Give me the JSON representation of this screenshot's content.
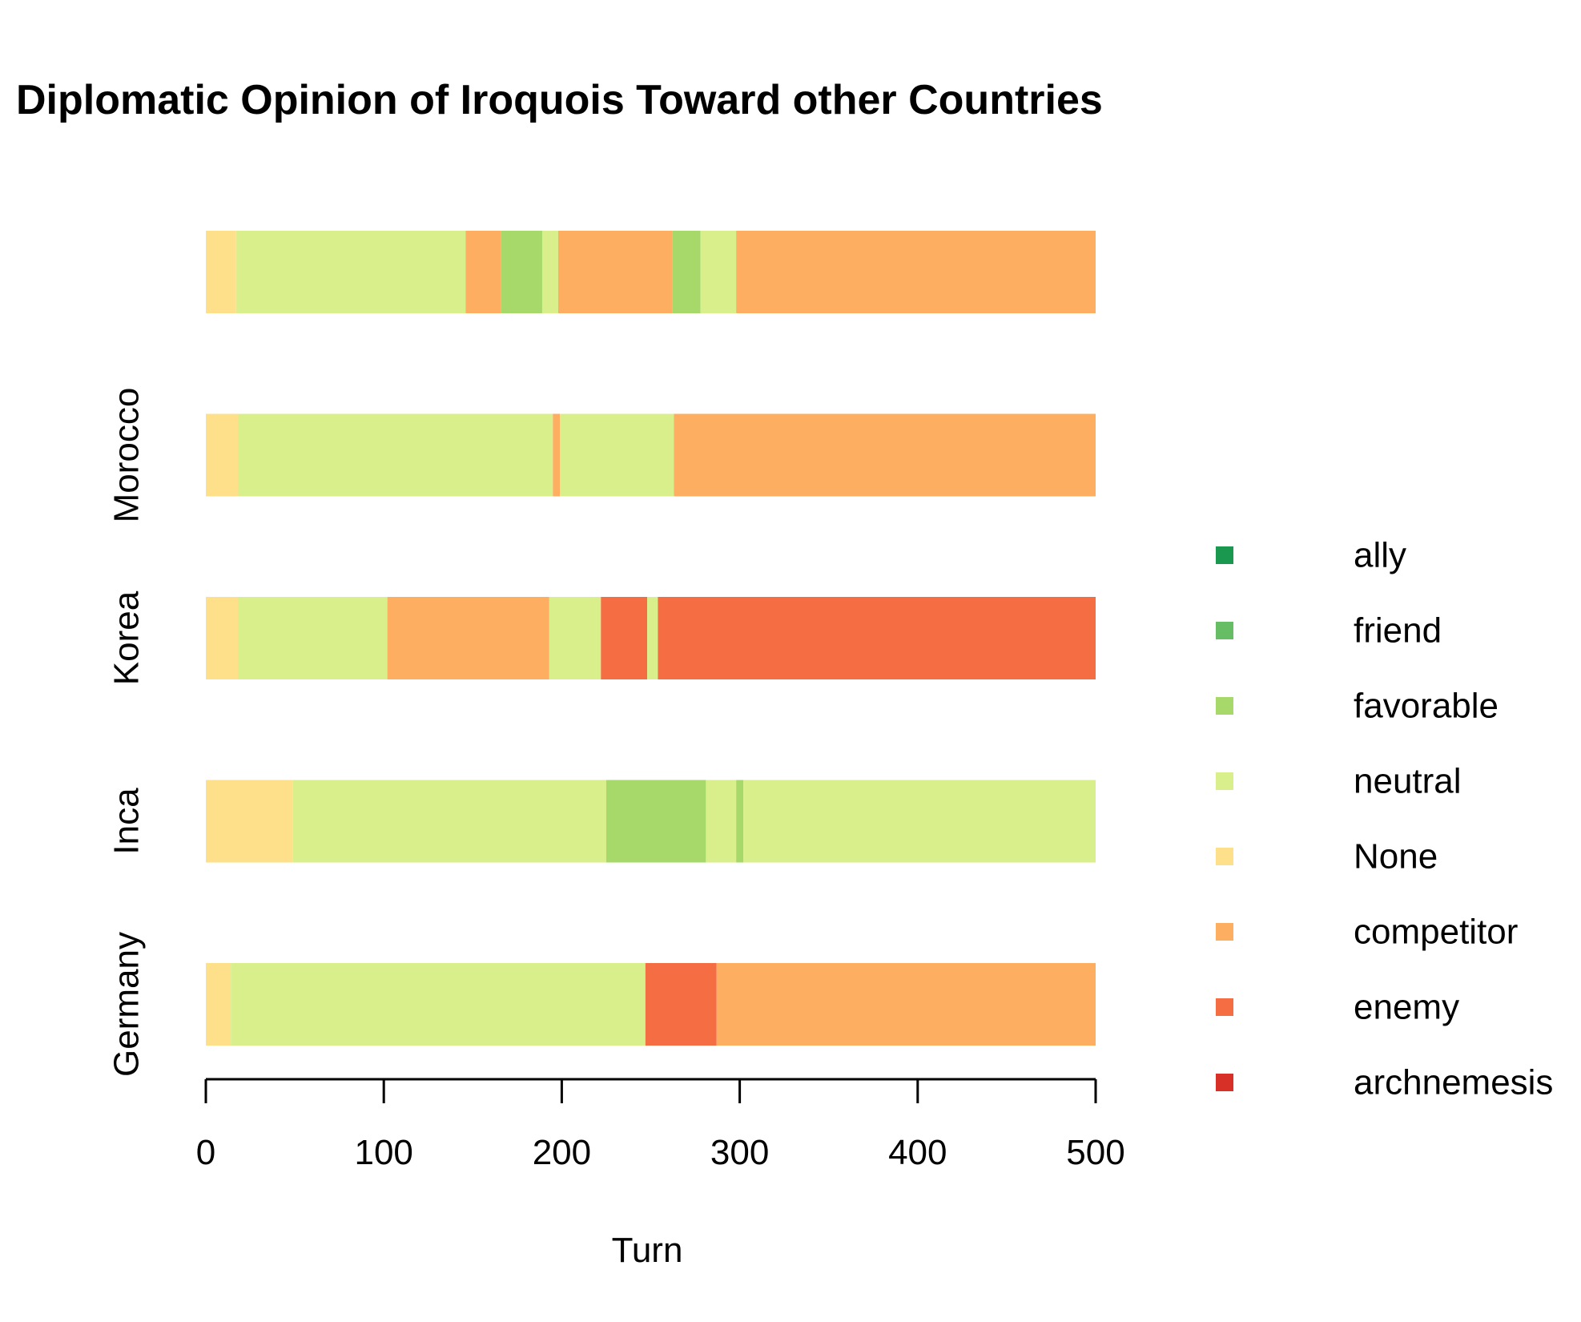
{
  "chart_data": {
    "type": "bar",
    "orientation": "horizontal",
    "stacked": true,
    "title": "Diplomatic Opinion of Iroquois Toward other Countries",
    "xlabel": "Turn",
    "ylabel": "",
    "xlim": [
      0,
      500
    ],
    "x_ticks": [
      "0",
      "100",
      "200",
      "300",
      "400",
      "500"
    ],
    "grid": false,
    "legend_position": "right",
    "legend": [
      {
        "name": "ally",
        "color": "#1a9850"
      },
      {
        "name": "friend",
        "color": "#66bd63"
      },
      {
        "name": "favorable",
        "color": "#a6d96a"
      },
      {
        "name": "neutral",
        "color": "#d9ef8b"
      },
      {
        "name": "None",
        "color": "#fee08b"
      },
      {
        "name": "competitor",
        "color": "#fdae61"
      },
      {
        "name": "enemy",
        "color": "#f46d43"
      },
      {
        "name": "archnemesis",
        "color": "#d73027"
      }
    ],
    "rows": [
      {
        "label": "",
        "segments": [
          {
            "start": 0,
            "end": 17,
            "status": "None"
          },
          {
            "start": 17,
            "end": 146,
            "status": "neutral"
          },
          {
            "start": 146,
            "end": 166,
            "status": "competitor"
          },
          {
            "start": 166,
            "end": 189,
            "status": "favorable"
          },
          {
            "start": 189,
            "end": 198,
            "status": "neutral"
          },
          {
            "start": 198,
            "end": 262,
            "status": "competitor"
          },
          {
            "start": 262,
            "end": 278,
            "status": "favorable"
          },
          {
            "start": 278,
            "end": 298,
            "status": "neutral"
          },
          {
            "start": 298,
            "end": 500,
            "status": "competitor"
          }
        ]
      },
      {
        "label": "Morocco",
        "segments": [
          {
            "start": 0,
            "end": 18,
            "status": "None"
          },
          {
            "start": 18,
            "end": 195,
            "status": "neutral"
          },
          {
            "start": 195,
            "end": 199,
            "status": "competitor"
          },
          {
            "start": 199,
            "end": 263,
            "status": "neutral"
          },
          {
            "start": 263,
            "end": 500,
            "status": "competitor"
          }
        ]
      },
      {
        "label": "Korea",
        "segments": [
          {
            "start": 0,
            "end": 18,
            "status": "None"
          },
          {
            "start": 18,
            "end": 102,
            "status": "neutral"
          },
          {
            "start": 102,
            "end": 193,
            "status": "competitor"
          },
          {
            "start": 193,
            "end": 222,
            "status": "neutral"
          },
          {
            "start": 222,
            "end": 248,
            "status": "enemy"
          },
          {
            "start": 248,
            "end": 254,
            "status": "neutral"
          },
          {
            "start": 254,
            "end": 500,
            "status": "enemy"
          }
        ]
      },
      {
        "label": "Inca",
        "segments": [
          {
            "start": 0,
            "end": 49,
            "status": "None"
          },
          {
            "start": 49,
            "end": 225,
            "status": "neutral"
          },
          {
            "start": 225,
            "end": 281,
            "status": "favorable"
          },
          {
            "start": 281,
            "end": 298,
            "status": "neutral"
          },
          {
            "start": 298,
            "end": 302,
            "status": "favorable"
          },
          {
            "start": 302,
            "end": 500,
            "status": "neutral"
          }
        ]
      },
      {
        "label": "Germany",
        "segments": [
          {
            "start": 0,
            "end": 14,
            "status": "None"
          },
          {
            "start": 14,
            "end": 247,
            "status": "neutral"
          },
          {
            "start": 247,
            "end": 287,
            "status": "enemy"
          },
          {
            "start": 287,
            "end": 500,
            "status": "competitor"
          }
        ]
      }
    ]
  }
}
